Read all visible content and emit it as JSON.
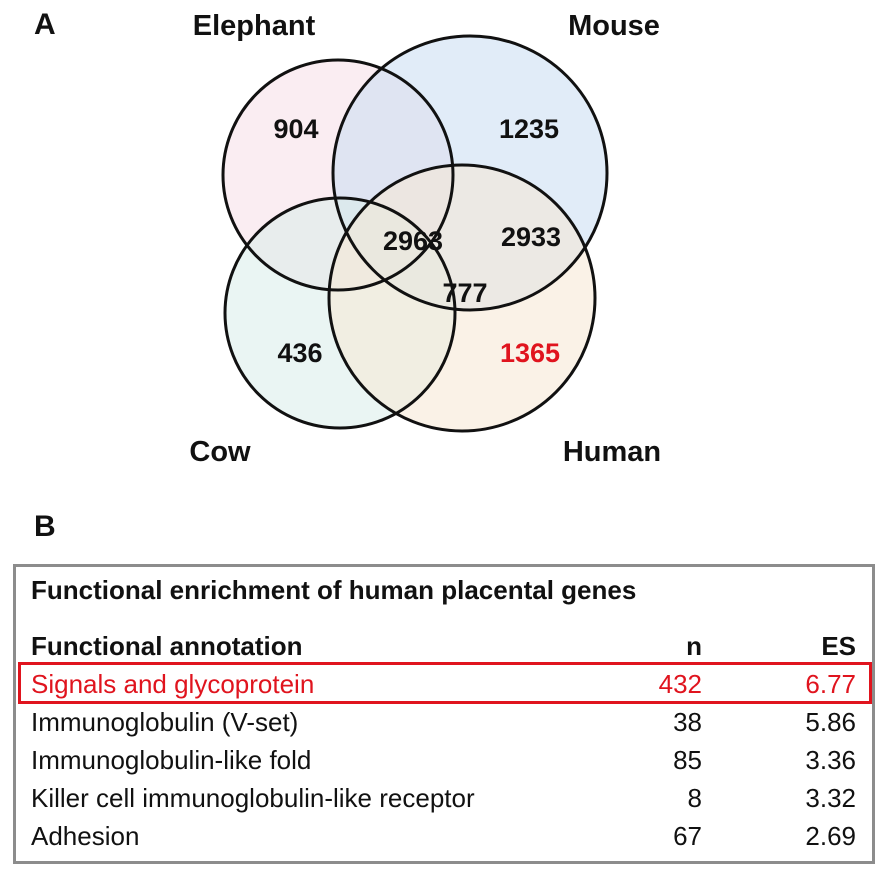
{
  "panel_a_label": "A",
  "panel_b_label": "B",
  "venn": {
    "sets": [
      {
        "name": "Elephant",
        "color": "#f6dfe8"
      },
      {
        "name": "Mouse",
        "color": "#c9dcf3"
      },
      {
        "name": "Cow",
        "color": "#d9ecea"
      },
      {
        "name": "Human",
        "color": "#f6e7d3"
      }
    ],
    "counts": {
      "elephant_only": "904",
      "mouse_only": "1235",
      "cow_only": "436",
      "human_only": "1365",
      "center": "2963",
      "mouse_human": "2933",
      "lower_center": "777"
    },
    "highlight_color": "#e0141e"
  },
  "table": {
    "title": "Functional enrichment of human placental genes",
    "headers": {
      "annotation": "Functional annotation",
      "n": "n",
      "es": "ES"
    },
    "rows": [
      {
        "annotation": "Signals and glycoprotein",
        "n": "432",
        "es": "6.77"
      },
      {
        "annotation": "Immunoglobulin (V-set)",
        "n": "38",
        "es": "5.86"
      },
      {
        "annotation": "Immunoglobulin-like fold",
        "n": "85",
        "es": "3.36"
      },
      {
        "annotation": "Killer cell immunoglobulin-like receptor",
        "n": "8",
        "es": "3.32"
      },
      {
        "annotation": "Adhesion",
        "n": "67",
        "es": "2.69"
      }
    ],
    "highlighted_row": 0
  }
}
